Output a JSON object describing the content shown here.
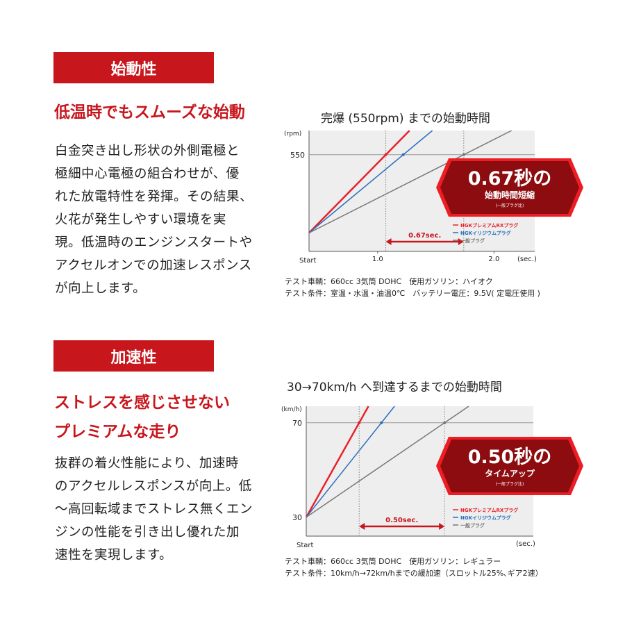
{
  "section1": {
    "header": "始動性",
    "subtitle": [
      "低温時でもスムーズな始動"
    ],
    "body": [
      "白金突き出し形状の外側電極と",
      "極細中心電極の組合わせが、優",
      "れた放電特性を発揮。その結果、",
      "火花が発生しやすい環境を実",
      "現。低温時のエンジンスタートや",
      "アクセルオンでの加速レスポンス",
      "が向上します。"
    ],
    "notes": [
      "テスト車輌：660cc 3気筒 DOHC　使用ガソリン：ハイオク",
      "テスト条件：室温・水温・油温0℃　バッテリー電圧：9.5V( 定電圧使用 )"
    ]
  },
  "section2": {
    "header": "加速性",
    "subtitle": [
      "ストレスを感じさせない",
      "プレミアムな走り"
    ],
    "body": [
      "抜群の着火性能により、加速時",
      "のアクセルレスポンスが向上。低",
      "〜高回転域までストレス無くエン",
      "ジンの性能を引き出し優れた加",
      "速性を実現します。"
    ],
    "notes": [
      "テスト車輌：660cc 3気筒 DOHC　使用ガソリン：レギュラー",
      "テスト条件：10km/h→72km/hまでの緩加速（スロットル25%､ギア2速）"
    ]
  },
  "colors": {
    "accent": "#c8161d",
    "red_series": "#e8202a",
    "blue_series": "#2a6ebd",
    "gray_series": "#777777",
    "plot_bg": "#eeeeee"
  },
  "chart_data": [
    {
      "type": "line",
      "title": "完爆 (550rpm) までの始動時間",
      "ylabel": "(rpm)",
      "xlabel": "(sec.)",
      "x_start_label": "Start",
      "xticks": [
        1.0,
        2.0
      ],
      "xtick_labels": [
        "1.0",
        "2.0"
      ],
      "yticks": [
        550
      ],
      "ytick_labels": [
        "550"
      ],
      "xlim": [
        0.41,
        2.35
      ],
      "ylim": [
        -130,
        720
      ],
      "target": 550,
      "series": [
        {
          "name": "NGKプレミアムRXプラグ",
          "reach_time": 1.07
        },
        {
          "name": "NGKイリジウムプラグ",
          "reach_time": 1.22
        },
        {
          "name": "一般プラグ",
          "reach_time": 1.74
        }
      ],
      "annotation": "0.67sec.",
      "badge": {
        "big": "0.67秒の",
        "mid": "始動時間短縮",
        "small": "(一般プラグ比)"
      }
    },
    {
      "type": "line",
      "title": "30→70km/h へ到達するまでの始動時間",
      "ylabel": "(km/h)",
      "xlabel": "(sec.)",
      "x_start_label": "Start",
      "xticks": [],
      "xtick_labels": [],
      "yticks": [
        30,
        70
      ],
      "ytick_labels": [
        "30",
        "70"
      ],
      "xlim": [
        0,
        1.33
      ],
      "ylim": [
        22,
        77
      ],
      "start_value": 30,
      "target": 70,
      "series": [
        {
          "name": "NGKプレミアムRXプラグ",
          "reach_time": 0.31
        },
        {
          "name": "NGKイリジウムプラグ",
          "reach_time": 0.44
        },
        {
          "name": "一般プラグ",
          "reach_time": 0.81
        }
      ],
      "annotation": "0.50sec.",
      "badge": {
        "big": "0.50秒の",
        "mid": "タイムアップ",
        "small": "(一般プラグ比)"
      }
    }
  ]
}
